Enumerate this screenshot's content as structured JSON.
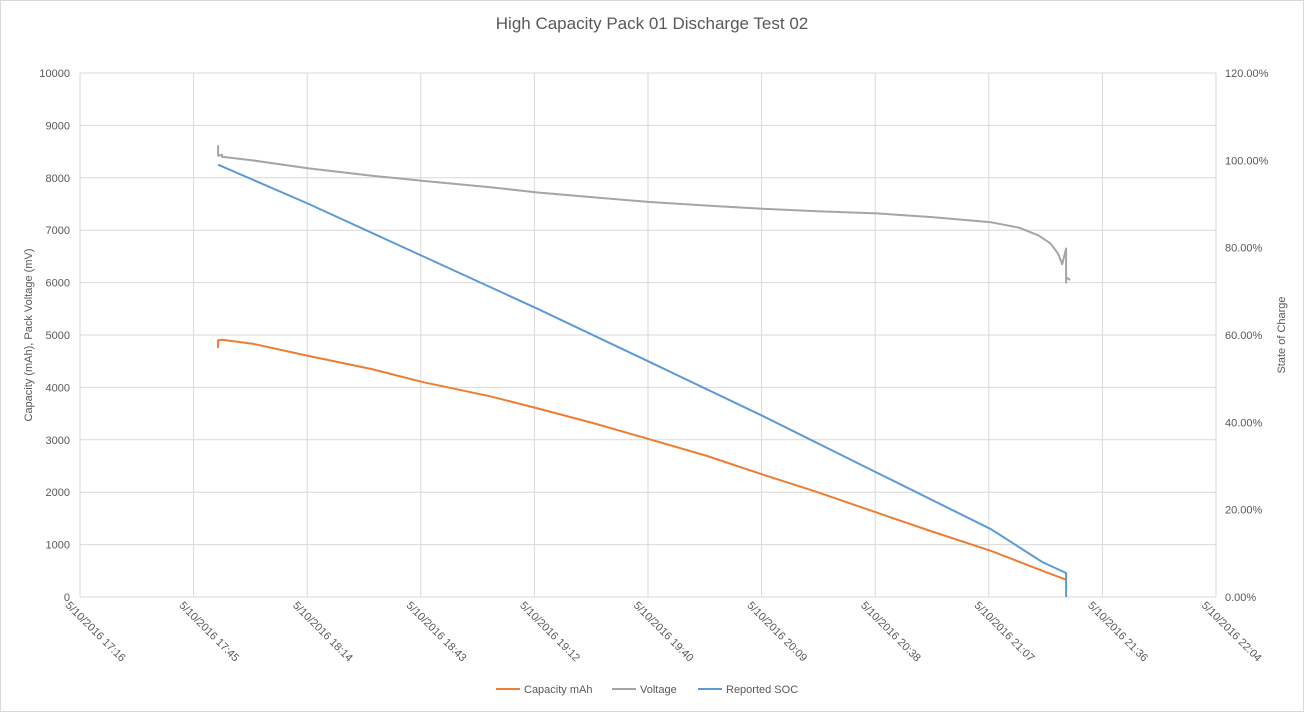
{
  "chart_data": {
    "type": "line",
    "title": "High Capacity Pack 01 Discharge Test 02",
    "ylabel": "Capacity (mAh),  Pack Voltage (mV)",
    "y2label": "State of Charge",
    "ylim": [
      0,
      10000
    ],
    "y2lim": [
      0,
      1.2
    ],
    "ytick_labels": [
      "0",
      "1000",
      "2000",
      "3000",
      "4000",
      "5000",
      "6000",
      "7000",
      "8000",
      "9000",
      "10000"
    ],
    "y2tick_labels": [
      "0.00%",
      "20.00%",
      "40.00%",
      "60.00%",
      "80.00%",
      "100.00%",
      "120.00%"
    ],
    "xtick_labels": [
      "5/10/2016 17:16",
      "5/10/2016 17:45",
      "5/10/2016 18:14",
      "5/10/2016 18:43",
      "5/10/2016 19:12",
      "5/10/2016 19:40",
      "5/10/2016 20:09",
      "5/10/2016 20:38",
      "5/10/2016 21:07",
      "5/10/2016 21:36",
      "5/10/2016 22:04"
    ],
    "xlim": [
      "5/10/2016 17:16",
      "5/10/2016 22:04"
    ],
    "grid": true,
    "legend_position": "bottom",
    "series": [
      {
        "name": "Capacity mAh",
        "color": "#ed7d31",
        "axis": "left",
        "points": [
          [
            "5/10/2016 17:51",
            4750
          ],
          [
            "5/10/2016 17:51",
            4900
          ],
          [
            "5/10/2016 17:52",
            4910
          ],
          [
            "5/10/2016 18:00",
            4830
          ],
          [
            "5/10/2016 18:14",
            4600
          ],
          [
            "5/10/2016 18:30",
            4350
          ],
          [
            "5/10/2016 18:43",
            4100
          ],
          [
            "5/10/2016 19:00",
            3830
          ],
          [
            "5/10/2016 19:12",
            3600
          ],
          [
            "5/10/2016 19:26",
            3320
          ],
          [
            "5/10/2016 19:40",
            3020
          ],
          [
            "5/10/2016 19:55",
            2690
          ],
          [
            "5/10/2016 20:09",
            2340
          ],
          [
            "5/10/2016 20:23",
            2000
          ],
          [
            "5/10/2016 20:38",
            1610
          ],
          [
            "5/10/2016 20:52",
            1250
          ],
          [
            "5/10/2016 21:07",
            880
          ],
          [
            "5/10/2016 21:20",
            500
          ],
          [
            "5/10/2016 21:26",
            330
          ]
        ]
      },
      {
        "name": "Voltage",
        "color": "#a5a5a5",
        "axis": "left",
        "points": [
          [
            "5/10/2016 17:51",
            8620
          ],
          [
            "5/10/2016 17:51",
            8420
          ],
          [
            "5/10/2016 17:52",
            8440
          ],
          [
            "5/10/2016 17:52",
            8400
          ],
          [
            "5/10/2016 18:00",
            8330
          ],
          [
            "5/10/2016 18:14",
            8180
          ],
          [
            "5/10/2016 18:30",
            8040
          ],
          [
            "5/10/2016 18:43",
            7940
          ],
          [
            "5/10/2016 19:00",
            7820
          ],
          [
            "5/10/2016 19:12",
            7720
          ],
          [
            "5/10/2016 19:26",
            7630
          ],
          [
            "5/10/2016 19:40",
            7540
          ],
          [
            "5/10/2016 19:55",
            7470
          ],
          [
            "5/10/2016 20:09",
            7410
          ],
          [
            "5/10/2016 20:23",
            7360
          ],
          [
            "5/10/2016 20:38",
            7320
          ],
          [
            "5/10/2016 20:52",
            7250
          ],
          [
            "5/10/2016 21:07",
            7150
          ],
          [
            "5/10/2016 21:14",
            7050
          ],
          [
            "5/10/2016 21:19",
            6900
          ],
          [
            "5/10/2016 21:22",
            6750
          ],
          [
            "5/10/2016 21:24",
            6550
          ],
          [
            "5/10/2016 21:25",
            6350
          ],
          [
            "5/10/2016 21:26",
            6650
          ],
          [
            "5/10/2016 21:26",
            6000
          ],
          [
            "5/10/2016 21:26",
            6100
          ],
          [
            "5/10/2016 21:27",
            6050
          ]
        ]
      },
      {
        "name": "Reported SOC",
        "color": "#5b9bd5",
        "axis": "right",
        "points": [
          [
            "5/10/2016 17:51",
            0.99
          ],
          [
            "5/10/2016 18:14",
            0.9
          ],
          [
            "5/10/2016 18:43",
            0.78
          ],
          [
            "5/10/2016 19:12",
            0.66
          ],
          [
            "5/10/2016 19:40",
            0.54
          ],
          [
            "5/10/2016 20:09",
            0.415
          ],
          [
            "5/10/2016 20:38",
            0.285
          ],
          [
            "5/10/2016 21:07",
            0.155
          ],
          [
            "5/10/2016 21:20",
            0.08
          ],
          [
            "5/10/2016 21:26",
            0.055
          ],
          [
            "5/10/2016 21:26",
            0.0
          ]
        ]
      }
    ]
  }
}
